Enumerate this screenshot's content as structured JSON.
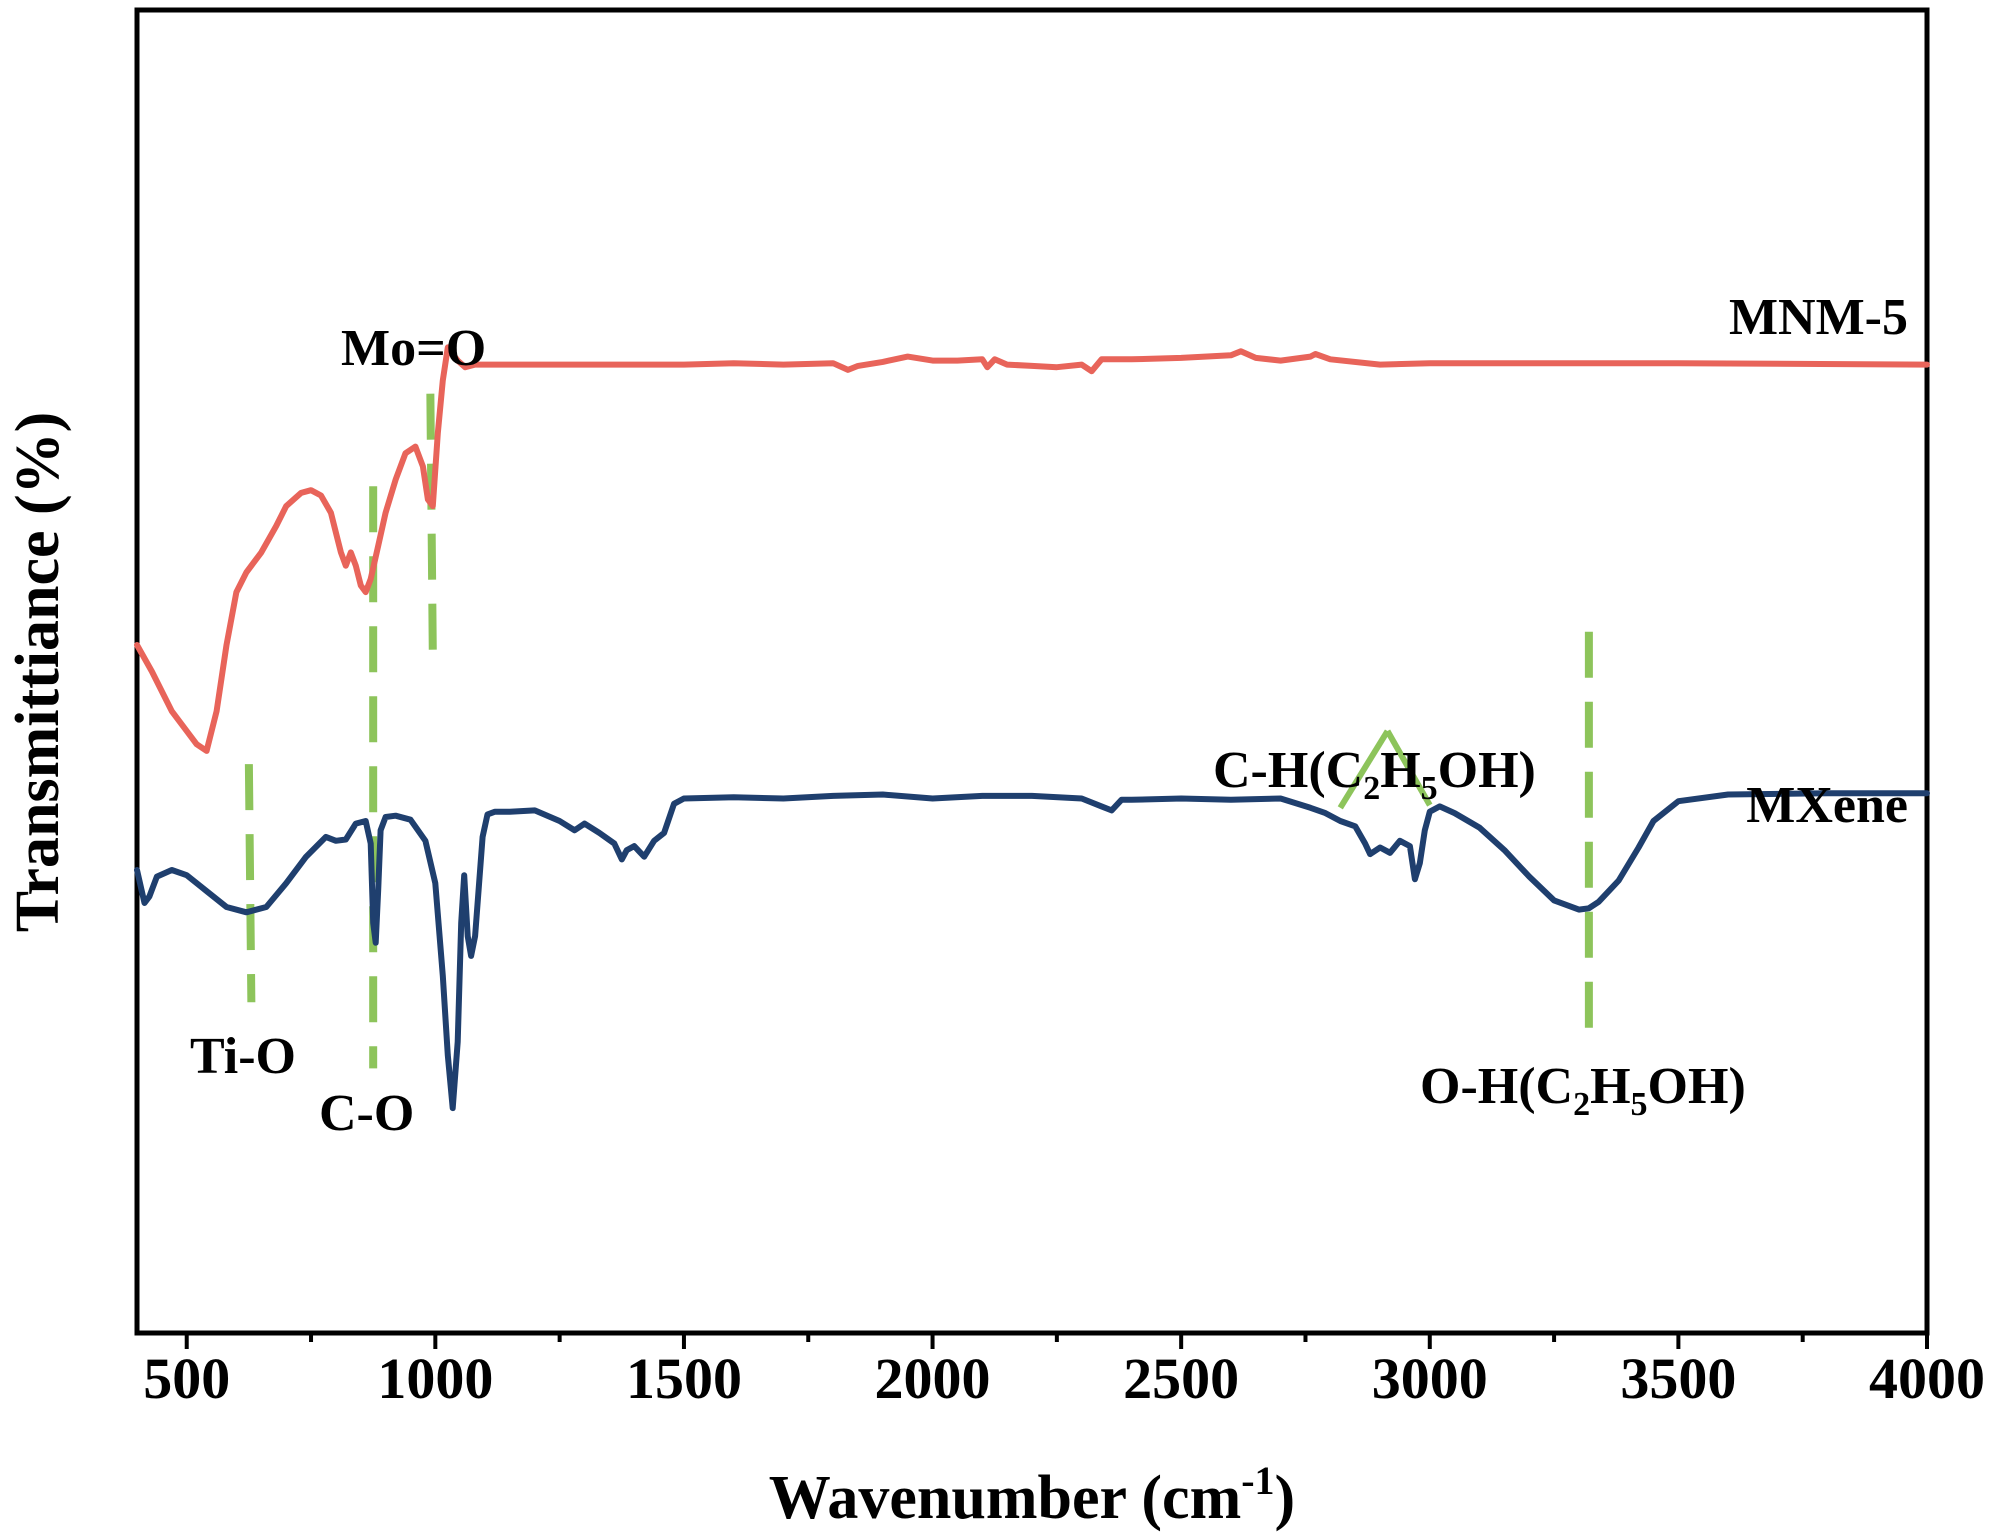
{
  "chart_data": {
    "type": "line",
    "title": "",
    "xlabel": "Wavenumber (cm",
    "xlabel_sup": "-1",
    "xlabel_close": ")",
    "ylabel": "Transmittiance (%)",
    "xlim": [
      400,
      4000
    ],
    "ylim": [
      0,
      100
    ],
    "x_ticks": [
      500,
      1000,
      1500,
      2000,
      2500,
      3000,
      3500,
      4000
    ],
    "x_tick_labels": [
      "500",
      "1000",
      "1500",
      "2000",
      "2500",
      "3000",
      "3500",
      "4000"
    ],
    "x_minor_ticks": [
      750,
      1250,
      1750,
      2250,
      2750,
      3250,
      3750
    ],
    "y_ticks_shown": false,
    "grid": false,
    "series": [
      {
        "name": "MNM-5",
        "color": "#e8645a",
        "x": [
          400,
          430,
          470,
          500,
          520,
          540,
          560,
          580,
          600,
          620,
          650,
          680,
          700,
          730,
          750,
          770,
          790,
          800,
          810,
          820,
          830,
          840,
          850,
          860,
          870,
          885,
          900,
          920,
          940,
          960,
          975,
          985,
          995,
          1005,
          1015,
          1025,
          1035,
          1045,
          1060,
          1080,
          1100,
          1200,
          1300,
          1500,
          1600,
          1700,
          1800,
          1830,
          1850,
          1900,
          1950,
          2000,
          2050,
          2100,
          2110,
          2125,
          2150,
          2200,
          2250,
          2300,
          2320,
          2340,
          2400,
          2500,
          2600,
          2620,
          2650,
          2700,
          2760,
          2770,
          2800,
          2900,
          3000,
          3200,
          3500,
          4000
        ],
        "values": [
          52,
          50,
          47,
          45.5,
          44.5,
          44,
          47,
          52,
          56,
          57.5,
          59,
          61,
          62.5,
          63.5,
          63.7,
          63.3,
          62,
          60.5,
          59,
          58,
          59,
          58,
          56.5,
          56,
          57,
          59.5,
          62,
          64.5,
          66.5,
          67,
          65.5,
          63,
          62.5,
          68,
          72,
          74.5,
          74,
          73.5,
          73,
          73.2,
          73.2,
          73.2,
          73.2,
          73.2,
          73.3,
          73.2,
          73.3,
          72.8,
          73.1,
          73.4,
          73.8,
          73.5,
          73.5,
          73.6,
          73,
          73.6,
          73.2,
          73.1,
          73,
          73.2,
          72.7,
          73.6,
          73.6,
          73.7,
          73.9,
          74.2,
          73.7,
          73.5,
          73.8,
          74,
          73.6,
          73.2,
          73.3,
          73.3,
          73.3,
          73.2
        ]
      },
      {
        "name": "MXene",
        "color": "#1f3f6e",
        "x": [
          400,
          415,
          425,
          440,
          470,
          500,
          540,
          580,
          620,
          660,
          700,
          740,
          780,
          800,
          820,
          840,
          860,
          870,
          875,
          880,
          885,
          890,
          900,
          920,
          950,
          980,
          1000,
          1015,
          1025,
          1035,
          1045,
          1052,
          1058,
          1065,
          1072,
          1080,
          1088,
          1095,
          1105,
          1120,
          1150,
          1200,
          1250,
          1280,
          1300,
          1330,
          1360,
          1375,
          1385,
          1400,
          1420,
          1440,
          1460,
          1480,
          1500,
          1600,
          1700,
          1800,
          1900,
          2000,
          2100,
          2200,
          2300,
          2340,
          2360,
          2380,
          2400,
          2500,
          2600,
          2700,
          2760,
          2790,
          2820,
          2850,
          2870,
          2880,
          2900,
          2920,
          2940,
          2960,
          2970,
          2980,
          2990,
          3000,
          3020,
          3050,
          3100,
          3150,
          3200,
          3250,
          3300,
          3320,
          3340,
          3380,
          3420,
          3450,
          3500,
          3600,
          3800,
          4000
        ],
        "values": [
          35,
          32.5,
          33,
          34.5,
          35,
          34.6,
          33.4,
          32.2,
          31.8,
          32.2,
          34,
          36,
          37.5,
          37.2,
          37.3,
          38.5,
          38.7,
          37,
          31,
          29.5,
          33.5,
          38,
          39,
          39.1,
          38.8,
          37.2,
          34,
          27,
          21,
          17,
          22,
          31,
          34.6,
          30,
          28.5,
          30,
          34,
          37.5,
          39.2,
          39.4,
          39.4,
          39.5,
          38.7,
          38,
          38.5,
          37.8,
          37,
          35.8,
          36.5,
          36.8,
          36,
          37.2,
          37.8,
          40,
          40.4,
          40.5,
          40.4,
          40.6,
          40.7,
          40.4,
          40.6,
          40.6,
          40.4,
          39.8,
          39.5,
          40.3,
          40.3,
          40.4,
          40.3,
          40.4,
          39.7,
          39.3,
          38.7,
          38.3,
          37,
          36.2,
          36.7,
          36.3,
          37.2,
          36.8,
          34.3,
          35.5,
          38,
          39.4,
          39.8,
          39.3,
          38.2,
          36.5,
          34.5,
          32.7,
          32,
          32.1,
          32.6,
          34.2,
          36.7,
          38.7,
          40.2,
          40.7,
          40.8,
          40.8
        ]
      }
    ],
    "guide_lines": [
      {
        "name": "ti-o-guide",
        "x_from": 625,
        "x_to": 630,
        "y_from": 43,
        "y_to": 25
      },
      {
        "name": "c-o-guide",
        "x_from": 875,
        "x_to": 875,
        "y_from": 64,
        "y_to": 20
      },
      {
        "name": "mo-o-guide",
        "x_from": 990,
        "x_to": 995,
        "y_from": 71,
        "y_to": 51
      },
      {
        "name": "o-h-guide",
        "x_from": 3320,
        "x_to": 3320,
        "y_from": 53,
        "y_to": 22.5
      },
      {
        "name": "c-h-guide-left",
        "x_from": 2820,
        "x_to": 2915,
        "y_from": 39.7,
        "y_to": 45.5
      },
      {
        "name": "c-h-guide-right",
        "x_from": 2915,
        "x_to": 3000,
        "y_from": 45.5,
        "y_to": 39.9
      }
    ],
    "guide_color": "#8dc45b",
    "series_labels": {
      "mnm5": "MNM-5",
      "mxene": "MXene"
    },
    "annotations": {
      "mo_o": "Mo=O",
      "ti_o": "Ti-O",
      "c_o": "C-O",
      "ch_pre": "C-H(C",
      "ch_sub1": "2",
      "ch_mid": "H",
      "ch_sub2": "5",
      "ch_post": "OH)",
      "oh_pre": "O-H(C",
      "oh_sub1": "2",
      "oh_mid": "H",
      "oh_sub2": "5",
      "oh_post": "OH)"
    }
  }
}
